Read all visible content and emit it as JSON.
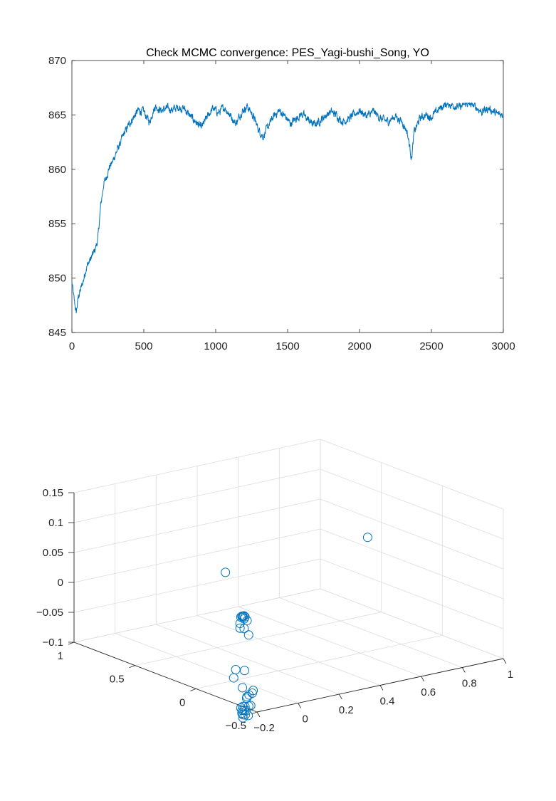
{
  "chart_data": [
    {
      "type": "line",
      "title": "Check MCMC convergence: PES_Yagi-bushi_Song, YO",
      "xlabel": "",
      "ylabel": "",
      "xlim": [
        0,
        3000
      ],
      "ylim": [
        845,
        870
      ],
      "xticks": [
        "0",
        "500",
        "1000",
        "1500",
        "2000",
        "2500",
        "3000"
      ],
      "yticks": [
        "845",
        "850",
        "855",
        "860",
        "865",
        "870"
      ],
      "grid": false,
      "color": "#0072BD",
      "trace_keypoints": [
        [
          0,
          849.6
        ],
        [
          15,
          848.0
        ],
        [
          30,
          846.8
        ],
        [
          45,
          848.3
        ],
        [
          60,
          848.9
        ],
        [
          80,
          849.8
        ],
        [
          100,
          851.0
        ],
        [
          120,
          851.5
        ],
        [
          140,
          852.0
        ],
        [
          160,
          852.6
        ],
        [
          180,
          853.5
        ],
        [
          200,
          856.6
        ],
        [
          220,
          858.6
        ],
        [
          240,
          859.3
        ],
        [
          260,
          860.2
        ],
        [
          280,
          860.6
        ],
        [
          300,
          861.3
        ],
        [
          320,
          861.9
        ],
        [
          340,
          862.5
        ],
        [
          360,
          863.2
        ],
        [
          380,
          863.7
        ],
        [
          400,
          864.2
        ],
        [
          430,
          864.8
        ],
        [
          460,
          865.4
        ],
        [
          500,
          865.3
        ],
        [
          540,
          864.3
        ],
        [
          560,
          865.2
        ],
        [
          580,
          865.8
        ],
        [
          620,
          865.4
        ],
        [
          660,
          865.6
        ],
        [
          700,
          865.5
        ],
        [
          740,
          865.7
        ],
        [
          780,
          865.6
        ],
        [
          820,
          864.9
        ],
        [
          860,
          864.4
        ],
        [
          900,
          863.8
        ],
        [
          940,
          864.8
        ],
        [
          980,
          865.6
        ],
        [
          1020,
          865.2
        ],
        [
          1060,
          865.7
        ],
        [
          1100,
          865.0
        ],
        [
          1140,
          864.2
        ],
        [
          1180,
          865.3
        ],
        [
          1220,
          865.8
        ],
        [
          1260,
          864.9
        ],
        [
          1300,
          863.6
        ],
        [
          1330,
          863.0
        ],
        [
          1360,
          863.8
        ],
        [
          1400,
          864.8
        ],
        [
          1440,
          865.4
        ],
        [
          1480,
          864.9
        ],
        [
          1520,
          864.2
        ],
        [
          1560,
          864.7
        ],
        [
          1600,
          865.1
        ],
        [
          1640,
          864.6
        ],
        [
          1680,
          864.1
        ],
        [
          1720,
          864.4
        ],
        [
          1760,
          864.9
        ],
        [
          1800,
          865.3
        ],
        [
          1840,
          865.0
        ],
        [
          1880,
          864.4
        ],
        [
          1920,
          864.6
        ],
        [
          1960,
          865.0
        ],
        [
          2000,
          865.4
        ],
        [
          2050,
          864.9
        ],
        [
          2100,
          865.3
        ],
        [
          2150,
          864.6
        ],
        [
          2200,
          864.4
        ],
        [
          2250,
          864.9
        ],
        [
          2300,
          864.3
        ],
        [
          2330,
          863.5
        ],
        [
          2350,
          862.0
        ],
        [
          2362,
          861.0
        ],
        [
          2380,
          863.4
        ],
        [
          2420,
          864.7
        ],
        [
          2460,
          865.0
        ],
        [
          2500,
          864.8
        ],
        [
          2550,
          865.5
        ],
        [
          2600,
          866.0
        ],
        [
          2650,
          865.9
        ],
        [
          2700,
          865.7
        ],
        [
          2750,
          866.1
        ],
        [
          2800,
          865.8
        ],
        [
          2850,
          865.3
        ],
        [
          2900,
          865.6
        ],
        [
          2950,
          865.1
        ],
        [
          3000,
          865.0
        ]
      ]
    },
    {
      "type": "scatter",
      "title": "",
      "xlabel": "",
      "ylabel": "",
      "zlabel": "",
      "xlim": [
        -0.2,
        1
      ],
      "ylim": [
        -0.5,
        1
      ],
      "zlim": [
        -0.1,
        0.15
      ],
      "xticks": [
        "−0.2",
        "0",
        "0.2",
        "0.4",
        "0.6",
        "0.8",
        "1"
      ],
      "yticks": [
        "−0.5",
        "0",
        "0.5",
        "1"
      ],
      "zticks": [
        "−0.1",
        "−0.05",
        "0",
        "0.05",
        "0.1",
        "0.15"
      ],
      "grid": true,
      "marker": "circle-open",
      "color": "#0072BD",
      "points": [
        [
          -0.14,
          -0.14,
          0.101
        ],
        [
          0.85,
          0.36,
          0.047
        ],
        [
          -0.12,
          -0.25,
          0.035
        ],
        [
          -0.125,
          -0.25,
          0.035
        ],
        [
          -0.115,
          -0.25,
          0.035
        ],
        [
          -0.13,
          -0.25,
          0.034
        ],
        [
          -0.11,
          -0.25,
          0.033
        ],
        [
          -0.12,
          -0.26,
          0.031
        ],
        [
          -0.115,
          -0.24,
          0.032
        ],
        [
          -0.1,
          -0.25,
          0.026
        ],
        [
          -0.14,
          -0.26,
          0.025
        ],
        [
          -0.14,
          -0.26,
          0.017
        ],
        [
          -0.12,
          -0.26,
          0.015
        ],
        [
          -0.11,
          -0.28,
          0.005
        ],
        [
          -0.155,
          -0.25,
          -0.052
        ],
        [
          -0.13,
          -0.28,
          -0.053
        ],
        [
          -0.165,
          -0.25,
          -0.065
        ],
        [
          -0.14,
          -0.28,
          -0.081
        ],
        [
          -0.11,
          -0.31,
          -0.09
        ],
        [
          -0.12,
          -0.3,
          -0.093
        ],
        [
          -0.13,
          -0.3,
          -0.095
        ],
        [
          -0.1,
          -0.3,
          -0.087
        ],
        [
          -0.12,
          -0.28,
          -0.1
        ],
        [
          -0.13,
          -0.25,
          -0.118
        ],
        [
          -0.12,
          -0.25,
          -0.116
        ],
        [
          -0.11,
          -0.25,
          -0.117
        ],
        [
          -0.08,
          -0.23,
          -0.12
        ],
        [
          -0.07,
          -0.23,
          -0.12
        ],
        [
          -0.13,
          -0.26,
          -0.121
        ],
        [
          -0.12,
          -0.26,
          -0.122
        ],
        [
          -0.11,
          -0.26,
          -0.123
        ],
        [
          -0.125,
          -0.25,
          -0.127
        ],
        [
          -0.115,
          -0.26,
          -0.13
        ],
        [
          -0.12,
          -0.25,
          -0.13
        ],
        [
          -0.1,
          -0.26,
          -0.132
        ],
        [
          -0.12,
          -0.25,
          -0.135
        ]
      ]
    }
  ]
}
